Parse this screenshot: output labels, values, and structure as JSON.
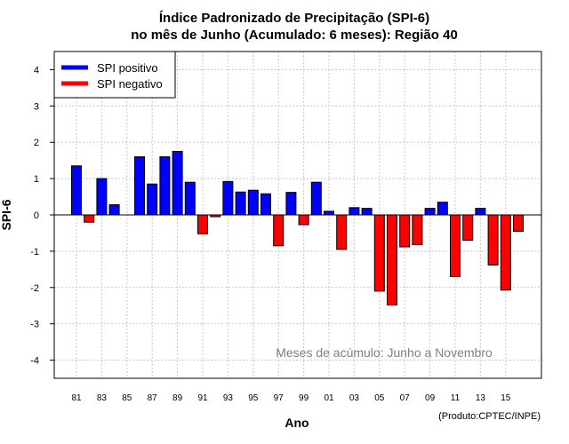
{
  "chart_data": {
    "type": "bar",
    "title": "Índice Padronizado de Precipitação (SPI-6)",
    "subtitle": "no mês de Junho (Acumulado: 6 meses): Região 40",
    "xlabel": "Ano",
    "ylabel": "SPI-6",
    "ylim": [
      -4.5,
      4.5
    ],
    "yticks": [
      -4,
      -3,
      -2,
      -1,
      0,
      1,
      2,
      3,
      4
    ],
    "grid": true,
    "categories": [
      "1981",
      "1982",
      "1983",
      "1984",
      "1985",
      "1986",
      "1987",
      "1988",
      "1989",
      "1990",
      "1991",
      "1992",
      "1993",
      "1994",
      "1995",
      "1996",
      "1997",
      "1998",
      "1999",
      "2000",
      "2001",
      "2002",
      "2003",
      "2004",
      "2005",
      "2006",
      "2007",
      "2008",
      "2009",
      "2010",
      "2011",
      "2012",
      "2013",
      "2014",
      "2015",
      "2016"
    ],
    "values": [
      1.35,
      -0.2,
      1.0,
      0.28,
      0.0,
      1.6,
      0.85,
      1.6,
      1.75,
      0.9,
      -0.52,
      -0.05,
      0.92,
      0.63,
      0.68,
      0.58,
      -0.85,
      0.62,
      -0.27,
      0.9,
      0.1,
      -0.95,
      0.2,
      0.18,
      -2.1,
      -2.48,
      -0.88,
      -0.82,
      0.18,
      0.35,
      -1.7,
      -0.7,
      0.18,
      -1.38,
      -2.07,
      -0.45
    ],
    "xtick_labels": [
      "81",
      "83",
      "85",
      "87",
      "89",
      "91",
      "93",
      "95",
      "97",
      "99",
      "01",
      "03",
      "05",
      "07",
      "09",
      "11",
      "13",
      "15"
    ],
    "legend": {
      "placement": "top-left",
      "entries": [
        {
          "label": "SPI positivo",
          "color": "#0000ff"
        },
        {
          "label": "SPI negativo",
          "color": "#ff0000"
        }
      ]
    },
    "colors": {
      "positive": "#0000ff",
      "negative": "#ff0000",
      "grid": "#c8c8c8"
    },
    "annotation": "Meses de acúmulo: Junho a Novembro",
    "credit": "(Produto:CPTEC/INPE)"
  }
}
